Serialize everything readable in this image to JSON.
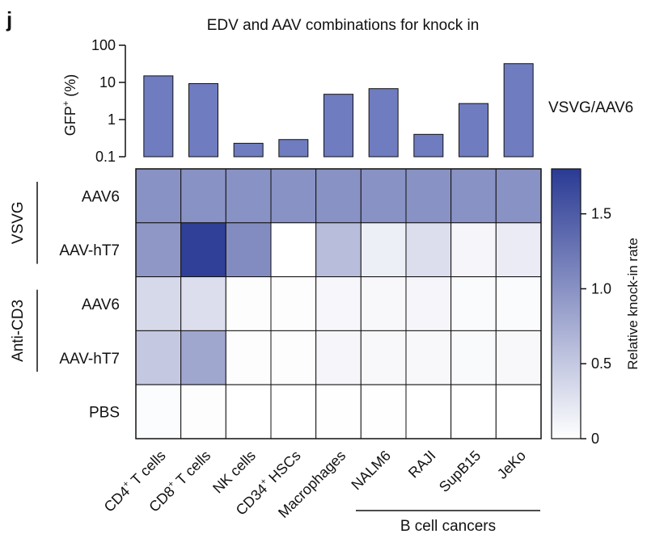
{
  "panel_label": "j",
  "chart_data": [
    {
      "type": "bar",
      "title": "EDV and AAV combinations for knock in",
      "ylabel": "GFP+ (%)",
      "ylabel_main": "GFP",
      "ylabel_sup": "+",
      "ylabel_tail": " (%)",
      "yscale": "log",
      "ylim": [
        0.1,
        100
      ],
      "yticks": [
        "0.1",
        "1",
        "10",
        "100"
      ],
      "series_label": "VSVG/AAV6",
      "categories": [
        "CD4+ T cells",
        "CD8+ T cells",
        "NK cells",
        "CD34+ HSCs",
        "Macrophages",
        "NALM6",
        "RAJI",
        "SupB15",
        "JeKo"
      ],
      "values": [
        15,
        9.3,
        0.23,
        0.29,
        4.8,
        6.8,
        0.4,
        2.7,
        32
      ],
      "bar_color": "#6f7cc0"
    },
    {
      "type": "heatmap",
      "rows": [
        "AAV6",
        "AAV-hT7",
        "AAV6",
        "AAV-hT7",
        "PBS"
      ],
      "row_groups": [
        {
          "label": "VSVG",
          "rows": [
            0,
            1
          ]
        },
        {
          "label": "Anti-CD3",
          "rows": [
            2,
            3
          ]
        }
      ],
      "columns": [
        {
          "main": "CD4",
          "sup": "+",
          "tail": " T cells"
        },
        {
          "main": "CD8",
          "sup": "+",
          "tail": " T cells"
        },
        {
          "main": "NK cells",
          "sup": "",
          "tail": ""
        },
        {
          "main": "CD34",
          "sup": "+",
          "tail": " HSCs"
        },
        {
          "main": "Macrophages",
          "sup": "",
          "tail": ""
        },
        {
          "main": "NALM6",
          "sup": "",
          "tail": ""
        },
        {
          "main": "RAJI",
          "sup": "",
          "tail": ""
        },
        {
          "main": "SupB15",
          "sup": "",
          "tail": ""
        },
        {
          "main": "JeKo",
          "sup": "",
          "tail": ""
        }
      ],
      "column_group": {
        "label": "B cell cancers",
        "from": 5,
        "to": 8
      },
      "values": [
        [
          1.0,
          1.0,
          1.0,
          1.0,
          1.0,
          1.0,
          1.0,
          1.0,
          1.0
        ],
        [
          0.95,
          1.75,
          1.05,
          0.0,
          0.6,
          0.15,
          0.3,
          0.08,
          0.18
        ],
        [
          0.35,
          0.3,
          0.02,
          0.02,
          0.07,
          0.06,
          0.08,
          0.04,
          0.04
        ],
        [
          0.5,
          0.8,
          0.02,
          0.02,
          0.08,
          0.06,
          0.06,
          0.05,
          0.06
        ],
        [
          0.03,
          0.02,
          0.0,
          0.0,
          0.01,
          0.01,
          0.0,
          0.0,
          0.0
        ]
      ],
      "colorbar": {
        "label": "Relative knock-in rate",
        "range": [
          0,
          1.8
        ],
        "ticks": [
          0,
          0.5,
          1.0,
          1.5
        ],
        "tick_labels": [
          "0",
          "0.5",
          "1.0",
          "1.5"
        ],
        "color_low": "#ffffff",
        "color_high": "#2a3a94"
      }
    }
  ]
}
